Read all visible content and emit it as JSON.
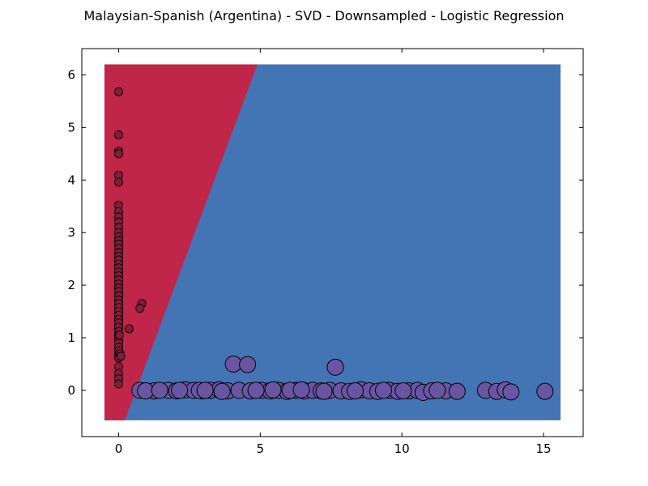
{
  "chart_data": {
    "type": "scatter",
    "title": "Malaysian-Spanish (Argentina) - SVD - Downsampled - Logistic Regression",
    "xlabel": "",
    "ylabel": "",
    "xlim": [
      -1.3,
      16.4
    ],
    "ylim": [
      -0.88,
      6.5
    ],
    "x_ticks": [
      0,
      5,
      10,
      15
    ],
    "y_ticks": [
      0,
      1,
      2,
      3,
      4,
      5,
      6
    ],
    "grid": false,
    "legend": "none",
    "decision_regions": {
      "extent": {
        "x": [
          -0.5,
          15.6
        ],
        "y": [
          -0.57,
          6.2
        ]
      },
      "boundary_line": [
        [
          0.22,
          -0.57
        ],
        [
          4.9,
          6.2
        ]
      ],
      "left_region_color": "#c0254a",
      "right_region_color": "#4374b3"
    },
    "series": [
      {
        "color": "#8b1a3a",
        "marker_size": "small",
        "points": [
          [
            0,
            5.68
          ],
          [
            0,
            4.86
          ],
          [
            0,
            4.55
          ],
          [
            0,
            4.5
          ],
          [
            0,
            4.09
          ],
          [
            0,
            3.96
          ],
          [
            0,
            3.52
          ],
          [
            0,
            3.4
          ],
          [
            0,
            3.3
          ],
          [
            0,
            3.2
          ],
          [
            0,
            3.1
          ],
          [
            0,
            3.0
          ],
          [
            0,
            2.92
          ],
          [
            0,
            2.85
          ],
          [
            0,
            2.78
          ],
          [
            0,
            2.7
          ],
          [
            0,
            2.62
          ],
          [
            0,
            2.55
          ],
          [
            0,
            2.48
          ],
          [
            0,
            2.4
          ],
          [
            0,
            2.33
          ],
          [
            0,
            2.25
          ],
          [
            0,
            2.18
          ],
          [
            0,
            2.1
          ],
          [
            0,
            2.02
          ],
          [
            0,
            1.95
          ],
          [
            0,
            1.88
          ],
          [
            0,
            1.8
          ],
          [
            0,
            1.72
          ],
          [
            0,
            1.65
          ],
          [
            0,
            1.58
          ],
          [
            0,
            1.5
          ],
          [
            0,
            1.43
          ],
          [
            0,
            1.35
          ],
          [
            0,
            1.28
          ],
          [
            0,
            1.2
          ],
          [
            0,
            1.12
          ],
          [
            0,
            1.05
          ],
          [
            0,
            0.98
          ],
          [
            0,
            0.9
          ],
          [
            0,
            0.82
          ],
          [
            0,
            0.75
          ],
          [
            0,
            0.68
          ],
          [
            0,
            0.62
          ],
          [
            0,
            0.45
          ],
          [
            0,
            0.32
          ],
          [
            0,
            0.22
          ],
          [
            0,
            0.12
          ],
          [
            0.03,
            1.05
          ],
          [
            0.05,
            0.7
          ],
          [
            0.08,
            0.65
          ],
          [
            0.82,
            1.65
          ],
          [
            0.75,
            1.56
          ],
          [
            0.37,
            1.17
          ]
        ]
      },
      {
        "color": "#6a55a3",
        "marker_size": "large",
        "points": [
          [
            0.75,
            0.0
          ],
          [
            1.25,
            -0.01
          ],
          [
            1.75,
            0.0
          ],
          [
            2.05,
            -0.01
          ],
          [
            2.35,
            0.01
          ],
          [
            2.65,
            0.0
          ],
          [
            2.95,
            -0.01
          ],
          [
            3.25,
            0.0
          ],
          [
            3.55,
            0.01
          ],
          [
            3.85,
            -0.01
          ],
          [
            4.05,
            0.5
          ],
          [
            4.25,
            0.0
          ],
          [
            4.55,
            0.49
          ],
          [
            4.65,
            -0.01
          ],
          [
            5.05,
            0.0
          ],
          [
            5.35,
            -0.01
          ],
          [
            5.65,
            0.0
          ],
          [
            5.95,
            -0.02
          ],
          [
            6.25,
            0.0
          ],
          [
            6.55,
            -0.01
          ],
          [
            6.85,
            0.0
          ],
          [
            7.15,
            -0.01
          ],
          [
            7.45,
            0.0
          ],
          [
            7.65,
            0.44
          ],
          [
            7.85,
            -0.01
          ],
          [
            8.15,
            -0.02
          ],
          [
            8.55,
            0.01
          ],
          [
            8.85,
            -0.01
          ],
          [
            9.15,
            -0.02
          ],
          [
            9.55,
            0.0
          ],
          [
            9.85,
            -0.02
          ],
          [
            10.25,
            -0.01
          ],
          [
            10.55,
            0.0
          ],
          [
            10.75,
            -0.04
          ],
          [
            11.05,
            -0.01
          ],
          [
            11.55,
            -0.01
          ],
          [
            11.95,
            -0.02
          ],
          [
            12.95,
            0.0
          ],
          [
            13.35,
            -0.02
          ],
          [
            13.65,
            0.01
          ],
          [
            13.85,
            -0.03
          ],
          [
            15.05,
            -0.02
          ],
          [
            0.95,
            -0.01
          ],
          [
            1.45,
            0.0
          ],
          [
            2.15,
            0.0
          ],
          [
            2.85,
            0.0
          ],
          [
            3.05,
            0.0
          ],
          [
            3.65,
            -0.02
          ],
          [
            4.85,
            0.0
          ],
          [
            5.45,
            0.01
          ],
          [
            6.05,
            0.0
          ],
          [
            6.45,
            0.01
          ],
          [
            7.25,
            -0.02
          ],
          [
            8.35,
            -0.01
          ],
          [
            9.35,
            0.0
          ],
          [
            10.05,
            -0.01
          ],
          [
            11.25,
            0.0
          ]
        ]
      }
    ]
  }
}
